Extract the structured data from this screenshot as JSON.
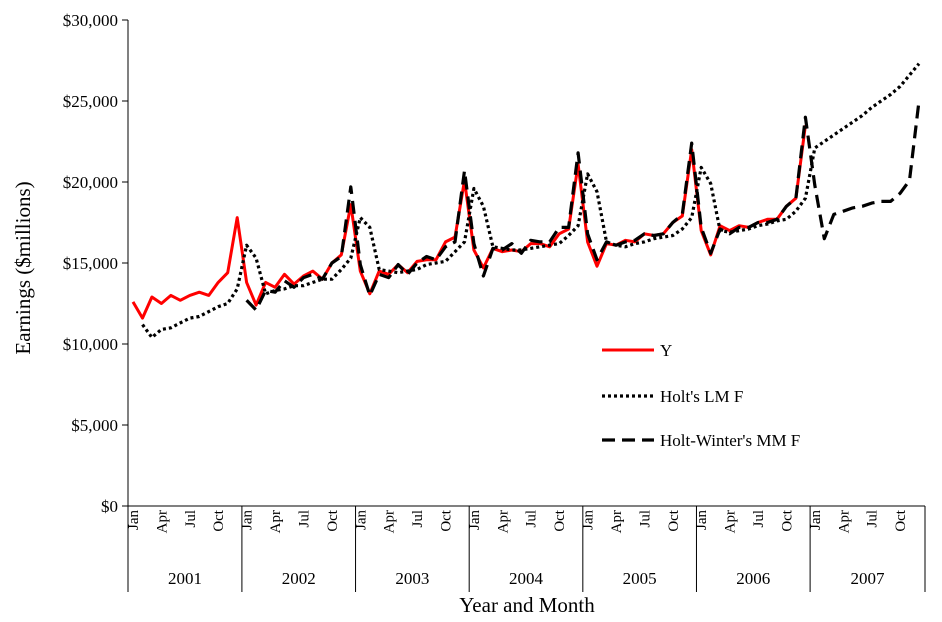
{
  "chart_data": {
    "type": "line",
    "xlabel": "Year and Month",
    "ylabel": "Earnings ($millions)",
    "ylim": [
      0,
      30000
    ],
    "y_ticks": [
      "$0",
      "$5,000",
      "$10,000",
      "$15,000",
      "$20,000",
      "$25,000",
      "$30,000"
    ],
    "y_tick_values": [
      0,
      5000,
      10000,
      15000,
      20000,
      25000,
      30000
    ],
    "grid": false,
    "legend_position": "right-center",
    "month_tick_labels": [
      "Jan",
      "Apr",
      "Jul",
      "Oct"
    ],
    "years": [
      "2001",
      "2002",
      "2003",
      "2004",
      "2005",
      "2006",
      "2007"
    ],
    "x_months": [
      "2001-01",
      "2001-02",
      "2001-03",
      "2001-04",
      "2001-05",
      "2001-06",
      "2001-07",
      "2001-08",
      "2001-09",
      "2001-10",
      "2001-11",
      "2001-12",
      "2002-01",
      "2002-02",
      "2002-03",
      "2002-04",
      "2002-05",
      "2002-06",
      "2002-07",
      "2002-08",
      "2002-09",
      "2002-10",
      "2002-11",
      "2002-12",
      "2003-01",
      "2003-02",
      "2003-03",
      "2003-04",
      "2003-05",
      "2003-06",
      "2003-07",
      "2003-08",
      "2003-09",
      "2003-10",
      "2003-11",
      "2003-12",
      "2004-01",
      "2004-02",
      "2004-03",
      "2004-04",
      "2004-05",
      "2004-06",
      "2004-07",
      "2004-08",
      "2004-09",
      "2004-10",
      "2004-11",
      "2004-12",
      "2005-01",
      "2005-02",
      "2005-03",
      "2005-04",
      "2005-05",
      "2005-06",
      "2005-07",
      "2005-08",
      "2005-09",
      "2005-10",
      "2005-11",
      "2005-12",
      "2006-01",
      "2006-02",
      "2006-03",
      "2006-04",
      "2006-05",
      "2006-06",
      "2006-07",
      "2006-08",
      "2006-09",
      "2006-10",
      "2006-11",
      "2006-12",
      "2007-01",
      "2007-02",
      "2007-03",
      "2007-04",
      "2007-05",
      "2007-06",
      "2007-07",
      "2007-08",
      "2007-09",
      "2007-10",
      "2007-11",
      "2007-12"
    ],
    "series": [
      {
        "name": "Y",
        "color": "#ff0000",
        "style": "solid",
        "values": [
          12600,
          11600,
          12900,
          12500,
          13000,
          12700,
          13000,
          13200,
          13000,
          13800,
          14400,
          17800,
          13800,
          12400,
          13800,
          13500,
          14300,
          13700,
          14200,
          14500,
          14000,
          15000,
          15500,
          18600,
          14500,
          13100,
          14500,
          14300,
          14900,
          14400,
          15100,
          15200,
          15200,
          16300,
          16600,
          20100,
          15800,
          14700,
          15900,
          15700,
          15800,
          15700,
          16200,
          16200,
          16000,
          16800,
          17100,
          21100,
          16300,
          14800,
          16200,
          16100,
          16400,
          16300,
          16800,
          16700,
          16800,
          17500,
          17900,
          22000,
          17000,
          15500,
          17300,
          17000,
          17300,
          17200,
          17500,
          17700,
          17700,
          18500,
          19000,
          23500,
          null,
          null,
          null,
          null,
          null,
          null,
          null,
          null,
          null,
          null,
          null,
          null
        ]
      },
      {
        "name": "Holt's LM F",
        "color": "#000000",
        "style": "dotted",
        "values": [
          null,
          11200,
          10400,
          10900,
          11000,
          11300,
          11600,
          11700,
          12000,
          12300,
          12500,
          13400,
          16100,
          15300,
          13100,
          13300,
          13400,
          13600,
          13600,
          13800,
          14000,
          14000,
          14600,
          15300,
          17800,
          17200,
          14600,
          14500,
          14400,
          14500,
          14600,
          14900,
          15000,
          15100,
          15700,
          16300,
          19600,
          18500,
          16000,
          15900,
          15800,
          15800,
          15900,
          16000,
          16100,
          16200,
          16700,
          17300,
          20500,
          19400,
          16300,
          16100,
          16000,
          16200,
          16300,
          16500,
          16600,
          16700,
          17100,
          17800,
          20900,
          19900,
          17000,
          16900,
          17000,
          17100,
          17300,
          17400,
          17600,
          17700,
          18200,
          19000,
          22100,
          22500,
          22900,
          23300,
          23700,
          24100,
          24600,
          25000,
          25400,
          25900,
          26600,
          27300
        ]
      },
      {
        "name": "Holt-Winter's MM F",
        "color": "#000000",
        "style": "dashed",
        "values": [
          null,
          null,
          null,
          null,
          null,
          null,
          null,
          null,
          null,
          null,
          null,
          null,
          12700,
          12100,
          13300,
          13200,
          13900,
          13500,
          14100,
          14300,
          14000,
          15000,
          15400,
          19700,
          14900,
          13000,
          14300,
          14100,
          14900,
          14300,
          15000,
          15400,
          15200,
          16000,
          16300,
          20700,
          16200,
          14200,
          15900,
          15800,
          16200,
          15600,
          16400,
          16300,
          16300,
          17200,
          17200,
          21800,
          16800,
          15200,
          16300,
          16100,
          16300,
          16400,
          16800,
          16700,
          16800,
          17500,
          18000,
          22400,
          17200,
          15600,
          17100,
          16800,
          17200,
          17200,
          17500,
          17500,
          17700,
          18500,
          19000,
          24000,
          19800,
          16500,
          18000,
          18200,
          18400,
          18500,
          18700,
          18800,
          18800,
          19300,
          20100,
          25000
        ]
      }
    ]
  }
}
